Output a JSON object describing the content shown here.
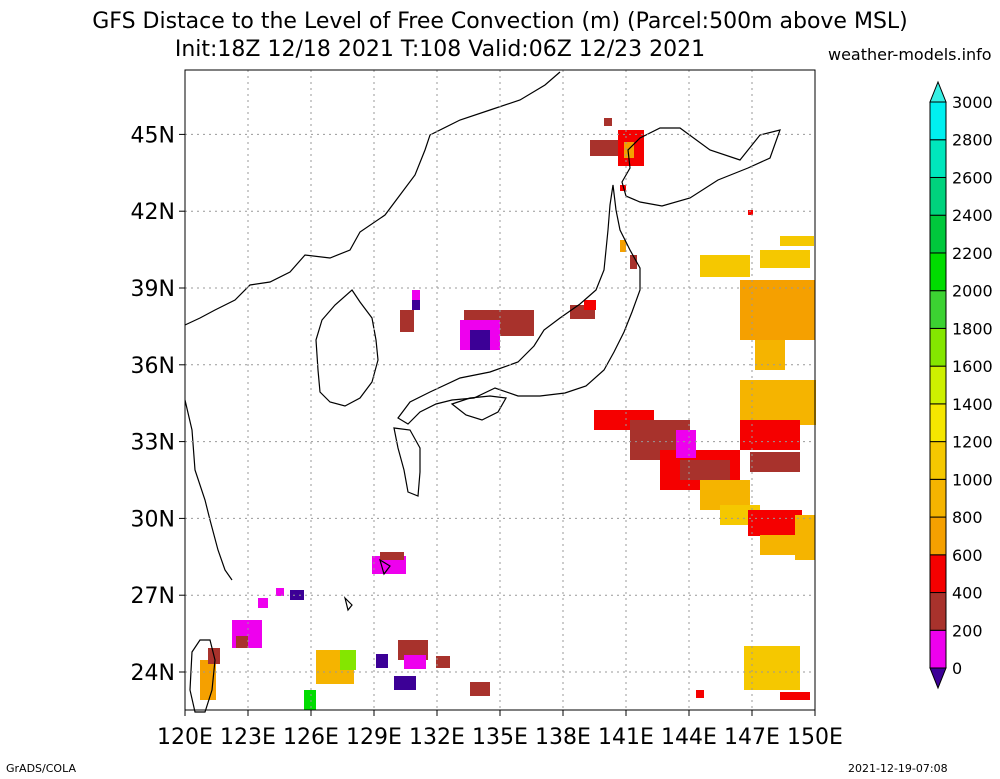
{
  "header": {
    "title_line1": "GFS Distace to the Level of Free Convection (m) (Parcel:500m above MSL)",
    "title_line2": "Init:18Z 12/18 2021 T:108 Valid:06Z 12/23 2021",
    "site": "weather-models.info"
  },
  "footer": {
    "left": "GrADS/COLA",
    "right": "2021-12-19-07:08"
  },
  "map": {
    "lon_labels": [
      "120E",
      "123E",
      "126E",
      "129E",
      "132E",
      "135E",
      "138E",
      "141E",
      "144E",
      "147E",
      "150E"
    ],
    "lat_labels": [
      "24N",
      "27N",
      "30N",
      "33N",
      "36N",
      "39N",
      "42N",
      "45N"
    ]
  },
  "colorbar": {
    "labels": [
      "0",
      "200",
      "400",
      "600",
      "800",
      "1000",
      "1200",
      "1400",
      "1600",
      "1800",
      "2000",
      "2200",
      "2400",
      "2600",
      "2800",
      "3000"
    ],
    "colors": [
      "#3c0096",
      "#ee00ee",
      "#a8322c",
      "#f50000",
      "#f5a000",
      "#f5b400",
      "#f5c800",
      "#f5e600",
      "#cdf000",
      "#84e600",
      "#3cd232",
      "#00dc00",
      "#00c83c",
      "#00d27d",
      "#00e6bc",
      "#00f0f0",
      "#38f0e4"
    ]
  }
}
